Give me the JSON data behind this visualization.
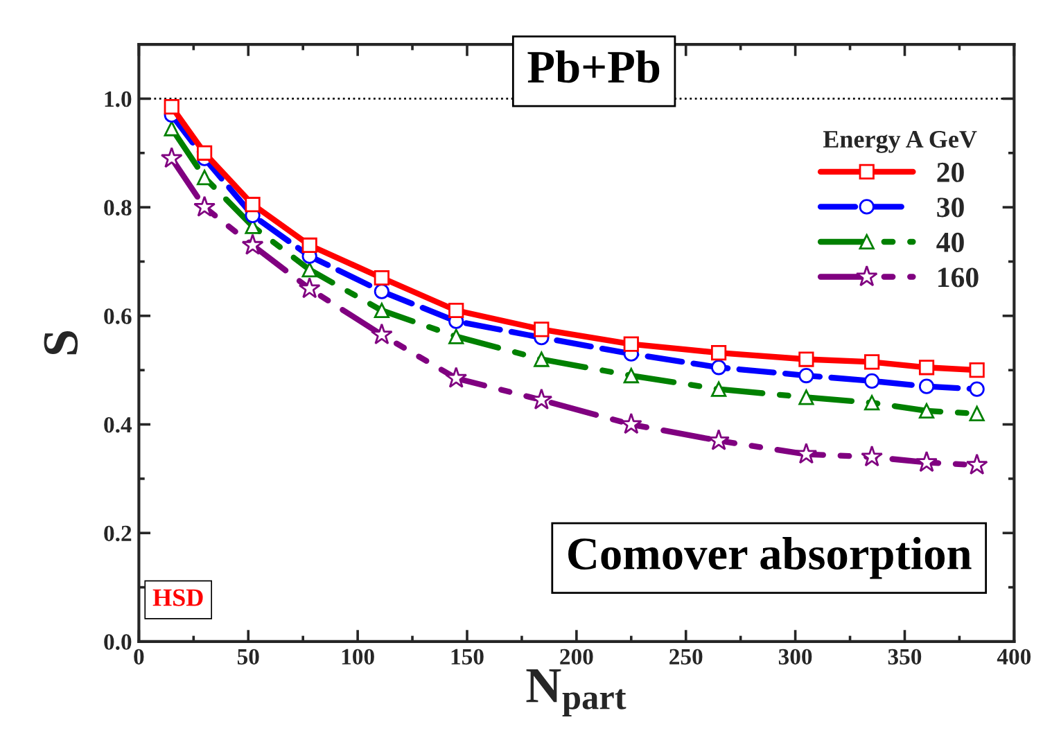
{
  "chart_data": {
    "type": "line",
    "xlabel": "N$_{part}$",
    "ylabel": "S",
    "legend_title": "Energy A GeV",
    "legend": "top right",
    "x": [
      15,
      30,
      52,
      78,
      111,
      145,
      184,
      225,
      265,
      305,
      335,
      360,
      383
    ],
    "series": [
      {
        "name": "20",
        "color": "#ff0000",
        "marker": "square",
        "line_style": "solid",
        "values": [
          0.985,
          0.9,
          0.805,
          0.73,
          0.67,
          0.61,
          0.575,
          0.548,
          0.532,
          0.52,
          0.515,
          0.505,
          0.5
        ]
      },
      {
        "name": "30",
        "color": "#0000ff",
        "marker": "circle",
        "line_style": "dashed",
        "values": [
          0.97,
          0.89,
          0.785,
          0.71,
          0.645,
          0.59,
          0.56,
          0.53,
          0.505,
          0.49,
          0.48,
          0.47,
          0.465
        ]
      },
      {
        "name": "40",
        "color": "#008000",
        "marker": "triangle",
        "line_style": "dashdot",
        "values": [
          0.945,
          0.855,
          0.765,
          0.685,
          0.61,
          0.562,
          0.52,
          0.49,
          0.465,
          0.45,
          0.44,
          0.425,
          0.42
        ]
      },
      {
        "name": "160",
        "color": "#800080",
        "marker": "star",
        "line_style": "dashdotdot",
        "values": [
          0.89,
          0.8,
          0.73,
          0.65,
          0.565,
          0.485,
          0.445,
          0.4,
          0.37,
          0.345,
          0.34,
          0.33,
          0.325
        ]
      }
    ],
    "xlim": [
      0,
      400
    ],
    "xticks": [
      0,
      50,
      100,
      150,
      200,
      250,
      300,
      350,
      400
    ],
    "ylim": [
      0,
      1.1
    ],
    "yticks": [
      {
        "value": 0,
        "label": "0.0"
      },
      {
        "value": 0.2,
        "label": "0.2"
      },
      {
        "value": 0.4,
        "label": "0.4"
      },
      {
        "value": 0.6,
        "label": "0.6"
      },
      {
        "value": 0.8,
        "label": "0.8"
      },
      {
        "value": 1.0,
        "label": "1.0"
      }
    ],
    "ref_lines": [
      {
        "axis": "y",
        "value": 1.0,
        "color": "#000000",
        "line_style": "dotted"
      }
    ],
    "annotations": [
      "Pb+Pb",
      "Comover absorption",
      "HSD"
    ],
    "grid": false
  }
}
